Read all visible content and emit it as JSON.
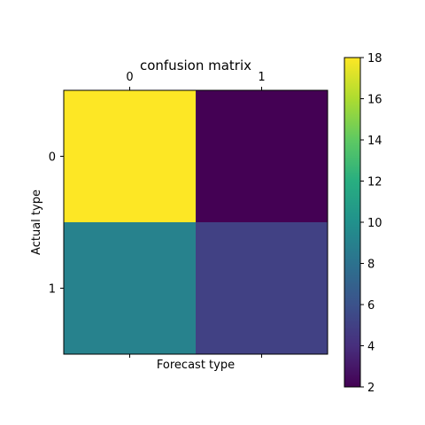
{
  "chart_data": {
    "type": "heatmap",
    "title": "confusion matrix",
    "xlabel": "Forecast type",
    "ylabel": "Actual type",
    "x_categories": [
      "0",
      "1"
    ],
    "y_categories": [
      "0",
      "1"
    ],
    "matrix": [
      [
        18,
        2
      ],
      [
        9,
        5
      ]
    ],
    "colormap": "viridis",
    "colorbar": {
      "min": 2,
      "max": 18,
      "ticks": [
        "2",
        "4",
        "6",
        "8",
        "10",
        "12",
        "14",
        "16",
        "18"
      ]
    },
    "x_ticks_position": "top"
  }
}
